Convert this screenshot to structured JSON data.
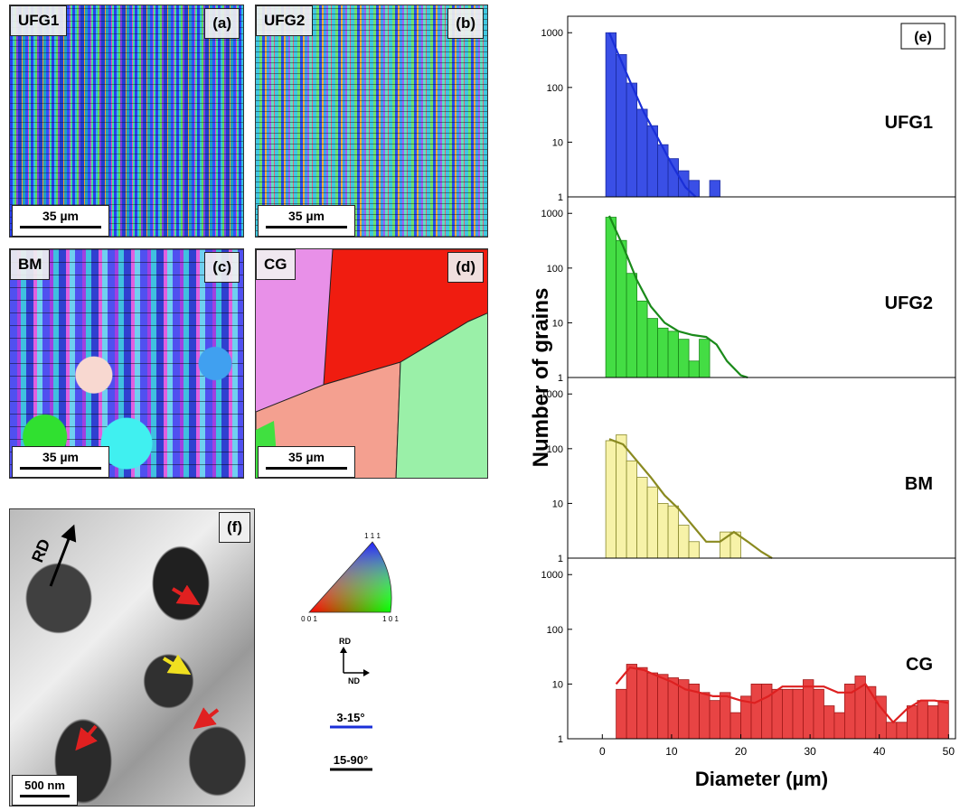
{
  "panels": [
    {
      "name": "UFG1",
      "label": "(a)",
      "scale_bar": "35 µm"
    },
    {
      "name": "UFG2",
      "label": "(b)",
      "scale_bar": "35 µm"
    },
    {
      "name": "BM",
      "label": "(c)",
      "scale_bar": "35 µm"
    },
    {
      "name": "CG",
      "label": "(d)",
      "scale_bar": "35 µm"
    },
    {
      "label": "(f)",
      "direction": "RD",
      "scale_bar": "500 nm"
    }
  ],
  "legend": {
    "ipf_corners": [
      "1 1 1",
      "0 0 1",
      "1 0 1"
    ],
    "axes": [
      "RD",
      "ND"
    ],
    "boundaries": [
      {
        "label": "3-15°",
        "color": "#1a2fd8"
      },
      {
        "label": "15-90°",
        "color": "#000000"
      }
    ]
  },
  "chart_data": [
    {
      "type": "histogram",
      "name": "UFG1",
      "panel_label": "(e)",
      "ylabel": "Number of grains",
      "color": "#3a4fe6",
      "edge": "#1a2aa0",
      "bins": [
        0.5,
        2,
        3.5,
        5,
        6.5,
        8,
        9.5,
        11,
        12.5,
        14,
        15.5,
        17
      ],
      "values": [
        1000,
        400,
        120,
        40,
        20,
        9,
        5,
        3,
        2,
        0,
        2
      ],
      "fit": {
        "color": "#1a2fd8",
        "x": [
          1,
          2,
          4,
          6,
          8,
          10,
          12,
          13.5
        ],
        "values": [
          1000,
          500,
          130,
          35,
          12,
          4,
          1.5,
          1
        ]
      },
      "log_scale": true,
      "xlim": [
        -5,
        51
      ],
      "ylim": [
        1,
        2000
      ],
      "yticks": [
        1,
        10,
        100,
        1000
      ]
    },
    {
      "type": "histogram",
      "name": "UFG2",
      "color": "#44dd44",
      "edge": "#1a8a1a",
      "bins": [
        0.5,
        2,
        3.5,
        5,
        6.5,
        8,
        9.5,
        11,
        12.5,
        14,
        15.5
      ],
      "values": [
        850,
        320,
        80,
        25,
        12,
        8,
        7,
        5,
        2,
        5
      ],
      "fit": {
        "color": "#1a8a1a",
        "x": [
          1,
          3,
          5,
          7,
          9,
          11,
          13,
          15,
          16.5,
          18,
          20,
          21
        ],
        "values": [
          900,
          250,
          60,
          20,
          10,
          7,
          6,
          5.5,
          4,
          2,
          1.1,
          1
        ]
      },
      "log_scale": true,
      "xlim": [
        -5,
        51
      ],
      "ylim": [
        1,
        2000
      ],
      "yticks": [
        1,
        10,
        100,
        1000
      ]
    },
    {
      "type": "histogram",
      "name": "BM",
      "color": "#f7f2a8",
      "edge": "#8a8a30",
      "bins": [
        0.5,
        2,
        3.5,
        5,
        6.5,
        8,
        9.5,
        11,
        12.5,
        14,
        15.5,
        17,
        18.5,
        20
      ],
      "values": [
        140,
        180,
        60,
        30,
        20,
        10,
        9,
        4,
        2,
        0,
        0,
        3,
        3
      ],
      "fit": {
        "color": "#8a8a20",
        "x": [
          1,
          3,
          5,
          7,
          9,
          11,
          13,
          15,
          17,
          19,
          21,
          23,
          24.5
        ],
        "values": [
          150,
          120,
          60,
          30,
          14,
          8,
          4,
          2,
          2,
          3,
          2,
          1.3,
          1
        ]
      },
      "log_scale": true,
      "xlim": [
        -5,
        51
      ],
      "ylim": [
        1,
        2000
      ],
      "yticks": [
        1,
        10,
        100,
        1000
      ]
    },
    {
      "type": "histogram",
      "name": "CG",
      "color": "#e84444",
      "edge": "#a01818",
      "bins": [
        2,
        3.5,
        5,
        6.5,
        8,
        9.5,
        11,
        12.5,
        14,
        15.5,
        17,
        18.5,
        20,
        21.5,
        23,
        24.5,
        26,
        27.5,
        29,
        30.5,
        32,
        33.5,
        35,
        36.5,
        38,
        39.5,
        41,
        42.5,
        44,
        45.5,
        47,
        48.5,
        50
      ],
      "values": [
        8,
        23,
        20,
        16,
        15,
        13,
        12,
        10,
        7,
        5,
        7,
        3,
        6,
        10,
        10,
        8,
        8,
        8,
        12,
        8,
        4,
        3,
        10,
        14,
        9,
        6,
        2,
        2,
        4,
        5,
        4,
        5
      ],
      "fit": {
        "color": "#dd2020",
        "x": [
          2,
          4,
          6,
          8,
          10,
          12,
          14,
          16,
          18,
          20,
          22,
          24,
          26,
          28,
          30,
          32,
          34,
          36,
          38,
          40,
          42,
          44,
          46,
          48,
          50
        ],
        "values": [
          10,
          20,
          18,
          14,
          11,
          8,
          7,
          6,
          6,
          5,
          4.5,
          6,
          9,
          9,
          9,
          9,
          7,
          7,
          10,
          4,
          2,
          3.5,
          5,
          5,
          4.5
        ]
      },
      "log_scale": true,
      "xlim": [
        -5,
        51
      ],
      "ylim": [
        1,
        2000
      ],
      "yticks": [
        1,
        10,
        100,
        1000
      ],
      "xticks": [
        0,
        10,
        20,
        30,
        40,
        50
      ],
      "xlabel": "Diameter (µm)"
    }
  ]
}
